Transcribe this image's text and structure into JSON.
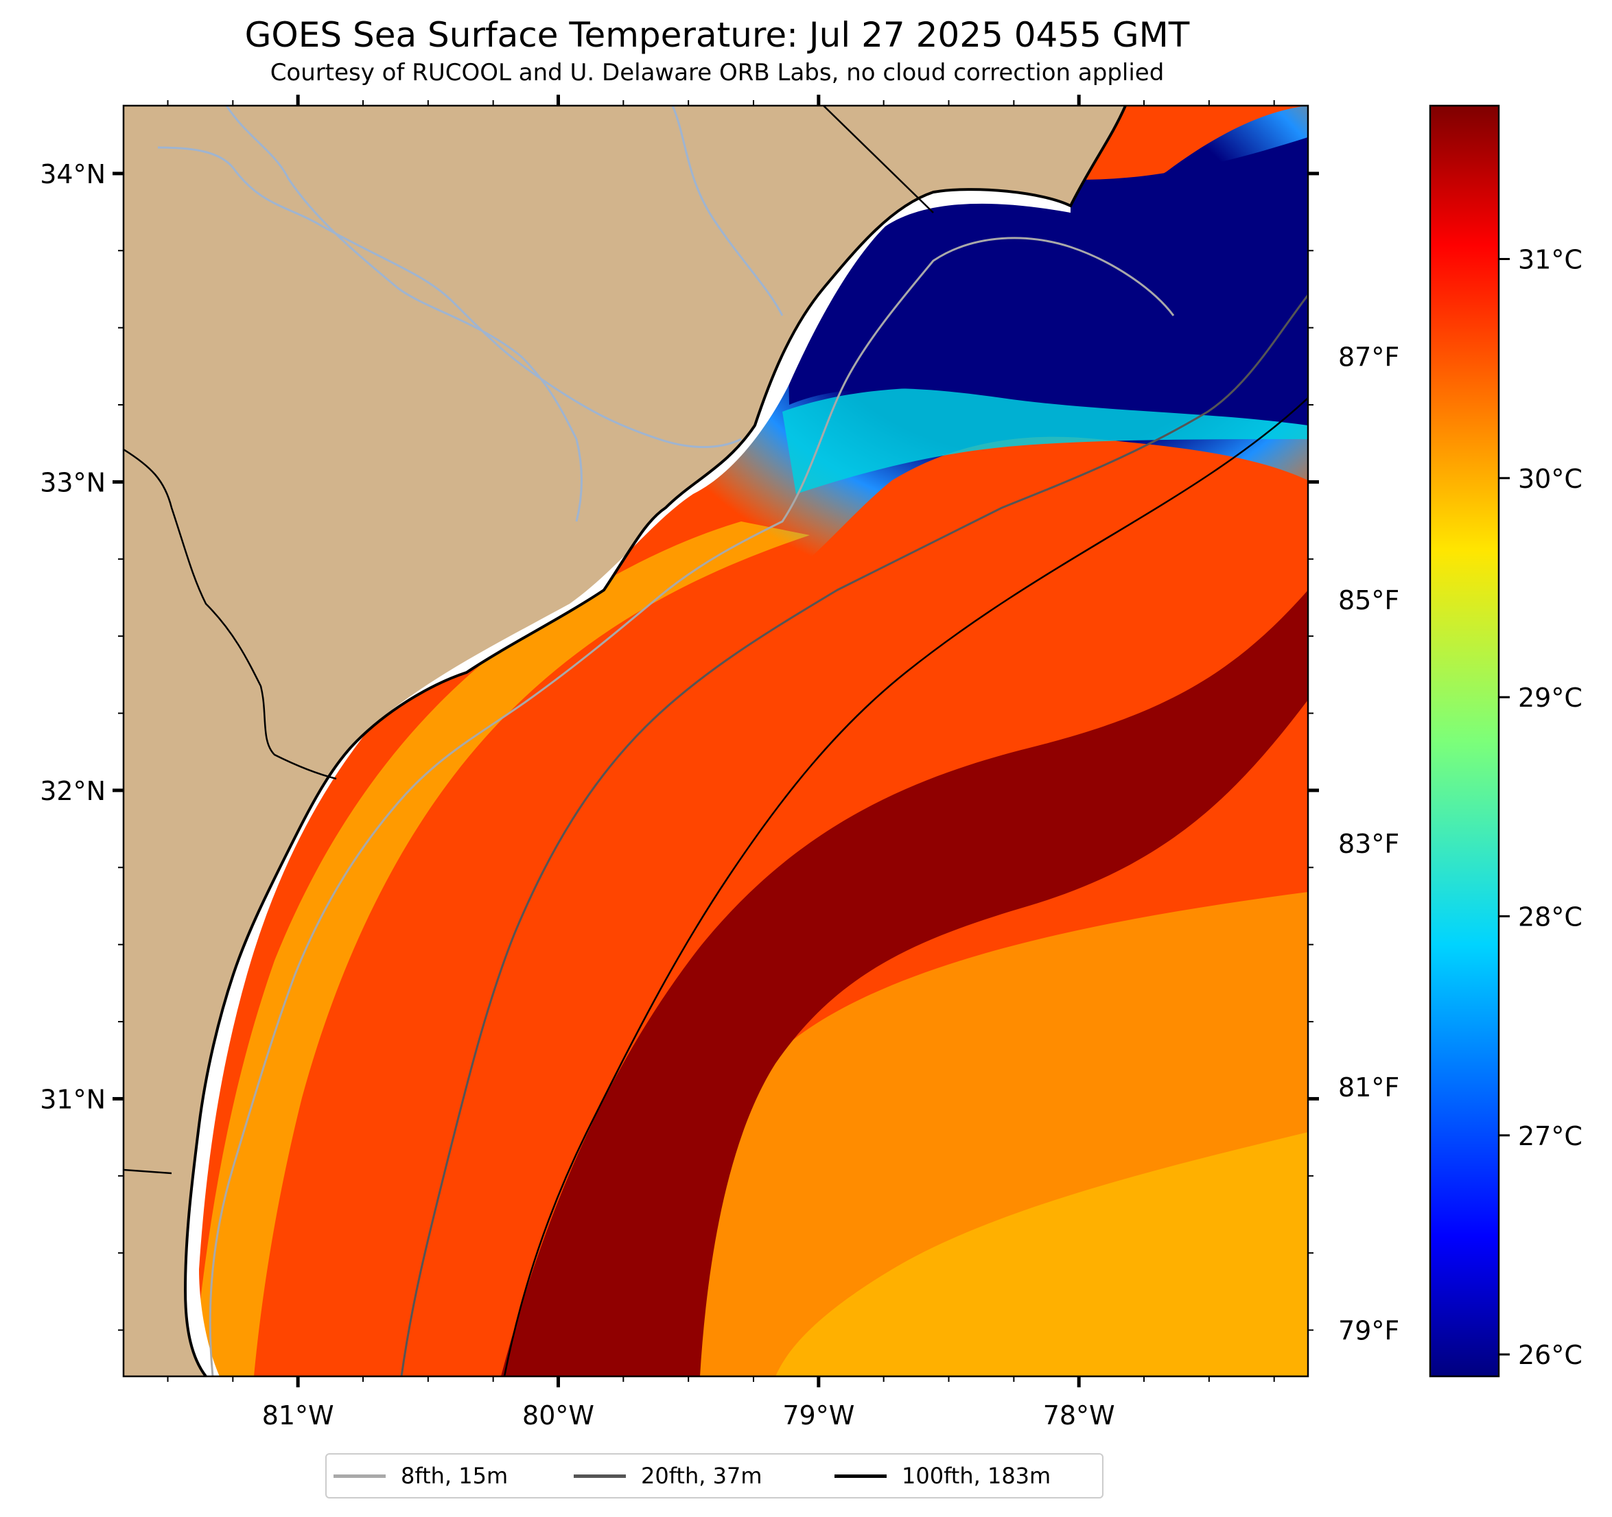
{
  "title": "GOES Sea Surface Temperature: Jul 27 2025 0455 GMT",
  "subtitle": "Courtesy of RUCOOL and U. Delaware ORB Labs, no cloud correction applied",
  "map": {
    "lat_range": [
      30.1,
      34.22
    ],
    "lon_range": [
      -81.67,
      -77.12
    ],
    "land_color": "#d2b48c",
    "lat_ticks": [
      {
        "value": 34,
        "label": "34°N"
      },
      {
        "value": 33,
        "label": "33°N"
      },
      {
        "value": 32,
        "label": "32°N"
      },
      {
        "value": 31,
        "label": "31°N"
      }
    ],
    "lon_ticks": [
      {
        "value": -81,
        "label": "81°W"
      },
      {
        "value": -80,
        "label": "80°W"
      },
      {
        "value": -79,
        "label": "79°W"
      },
      {
        "value": -78,
        "label": "78°W"
      }
    ],
    "right_ticks_f": [
      {
        "value": 87,
        "label": "87°F"
      },
      {
        "value": 85,
        "label": "85°F"
      },
      {
        "value": 83,
        "label": "83°F"
      },
      {
        "value": 81,
        "label": "81°F"
      },
      {
        "value": 79,
        "label": "79°F"
      }
    ],
    "sst_range_c": [
      25.9,
      31.7
    ],
    "sst_features": [
      {
        "name": "cool shelf water off Cape Fear / Long Bay",
        "approx_c": 26.0
      },
      {
        "name": "Gulf Stream core",
        "approx_c": 31.5
      },
      {
        "name": "offshore warm water",
        "approx_c": 30.3
      }
    ]
  },
  "colorbar": {
    "min_c": 25.9,
    "max_c": 31.7,
    "colormap": "jet",
    "ticks_c": [
      {
        "value": 31,
        "label": "31°C"
      },
      {
        "value": 30,
        "label": "30°C"
      },
      {
        "value": 29,
        "label": "29°C"
      },
      {
        "value": 28,
        "label": "28°C"
      },
      {
        "value": 27,
        "label": "27°C"
      },
      {
        "value": 26,
        "label": "26°C"
      }
    ]
  },
  "legend": [
    {
      "label": "8fth, 15m",
      "color": "#a9a9a9"
    },
    {
      "label": "20fth, 37m",
      "color": "#555555"
    },
    {
      "label": "100fth, 183m",
      "color": "#000000"
    }
  ]
}
